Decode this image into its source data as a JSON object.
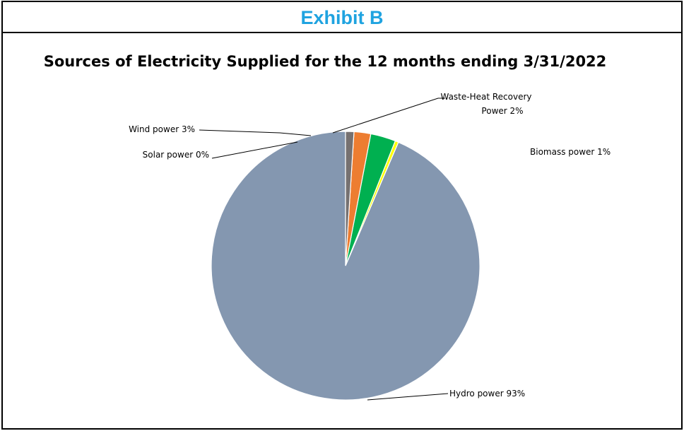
{
  "header": {
    "title": "Exhibit B",
    "title_color": "#1fa3e0"
  },
  "chart_data": {
    "type": "pie",
    "title": "Sources of Electricity Supplied for the 12 months ending 3/31/2022",
    "slices": [
      {
        "name": "Hydro power",
        "value": 93,
        "label": "Hydro power 93%",
        "color": "#8497b0"
      },
      {
        "name": "Solar power",
        "value": 0.4,
        "label": "Solar power 0%",
        "color": "#ffff00"
      },
      {
        "name": "Wind power",
        "value": 3,
        "label": "Wind power 3%",
        "color": "#00b050"
      },
      {
        "name": "Waste-Heat Recovery Power",
        "value": 2,
        "label": "Waste-Heat Recovery Power 2%",
        "color": "#ed7d31"
      },
      {
        "name": "Biomass power",
        "value": 1,
        "label": "Biomass power 1%",
        "color": "#767171"
      }
    ]
  }
}
